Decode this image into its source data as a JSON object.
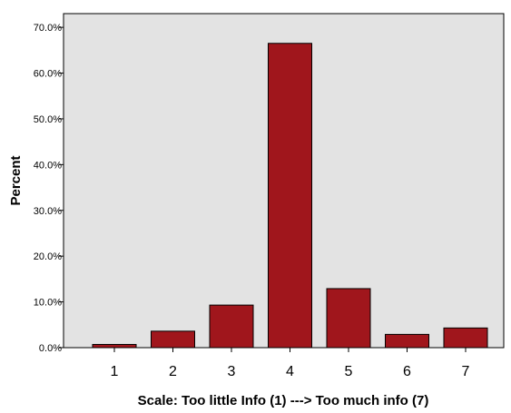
{
  "chart_data": {
    "type": "bar",
    "title": "",
    "xlabel": "Scale: Too little Info (1) ---> Too much info (7)",
    "ylabel": "Percent",
    "categories": [
      "1",
      "2",
      "3",
      "4",
      "5",
      "6",
      "7"
    ],
    "values": [
      0.7,
      3.6,
      9.3,
      66.5,
      12.9,
      2.9,
      4.3
    ],
    "ylim": [
      0,
      73
    ],
    "yticks": [
      0,
      10,
      20,
      30,
      40,
      50,
      60,
      70
    ],
    "ytick_labels": [
      "0.0%",
      "10.0%",
      "20.0%",
      "30.0%",
      "40.0%",
      "50.0%",
      "60.0%",
      "70.0%"
    ],
    "grid": false,
    "legend": "none",
    "colors": {
      "bar": "#a0161c",
      "plot_background": "#e3e3e3",
      "border": "#000000"
    }
  }
}
